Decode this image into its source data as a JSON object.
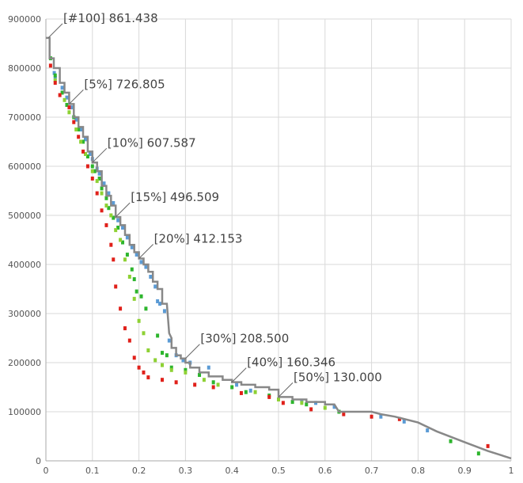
{
  "chart_data": {
    "type": "scatter",
    "title": "",
    "xlabel": "",
    "ylabel": "",
    "xlim": [
      0,
      1
    ],
    "ylim": [
      0,
      900000
    ],
    "grid": true,
    "x_ticks": [
      {
        "value": 0,
        "label": "0"
      },
      {
        "value": 0.1,
        "label": "0.1"
      },
      {
        "value": 0.2,
        "label": "0.2"
      },
      {
        "value": 0.3,
        "label": "0.3"
      },
      {
        "value": 0.4,
        "label": "0.4"
      },
      {
        "value": 0.5,
        "label": "0.5"
      },
      {
        "value": 0.6,
        "label": "0.6"
      },
      {
        "value": 0.7,
        "label": "0.7"
      },
      {
        "value": 0.8,
        "label": "0.8"
      },
      {
        "value": 0.9,
        "label": "0.9"
      },
      {
        "value": 1,
        "label": "1"
      }
    ],
    "y_ticks": [
      {
        "value": 0,
        "label": "0"
      },
      {
        "value": 100000,
        "label": "100000"
      },
      {
        "value": 200000,
        "label": "200000"
      },
      {
        "value": 300000,
        "label": "300000"
      },
      {
        "value": 400000,
        "label": "400000"
      },
      {
        "value": 500000,
        "label": "500000"
      },
      {
        "value": 600000,
        "label": "600000"
      },
      {
        "value": 700000,
        "label": "700000"
      },
      {
        "value": 800000,
        "label": "800000"
      },
      {
        "value": 900000,
        "label": "900000"
      }
    ],
    "annotations": [
      {
        "label": "[#100] 861.438",
        "x": 0.005,
        "y": 861438
      },
      {
        "label": "[5%] 726.805",
        "x": 0.05,
        "y": 726805
      },
      {
        "label": "[10%] 607.587",
        "x": 0.1,
        "y": 607587
      },
      {
        "label": "[15%] 496.509",
        "x": 0.15,
        "y": 496509
      },
      {
        "label": "[20%] 412.153",
        "x": 0.2,
        "y": 412153
      },
      {
        "label": "[30%] 208.500",
        "x": 0.3,
        "y": 208500
      },
      {
        "label": "[40%] 160.346",
        "x": 0.4,
        "y": 160346
      },
      {
        "label": "[50%] 130.000",
        "x": 0.5,
        "y": 130000
      }
    ],
    "series": [
      {
        "color": "#888888",
        "style": "step-line",
        "points": [
          [
            0.0,
            861438
          ],
          [
            0.008,
            861438
          ],
          [
            0.008,
            820000
          ],
          [
            0.017,
            820000
          ],
          [
            0.017,
            800000
          ],
          [
            0.03,
            800000
          ],
          [
            0.03,
            770000
          ],
          [
            0.04,
            770000
          ],
          [
            0.04,
            750000
          ],
          [
            0.05,
            750000
          ],
          [
            0.05,
            726805
          ],
          [
            0.06,
            726805
          ],
          [
            0.06,
            700000
          ],
          [
            0.07,
            700000
          ],
          [
            0.07,
            680000
          ],
          [
            0.08,
            680000
          ],
          [
            0.08,
            660000
          ],
          [
            0.09,
            660000
          ],
          [
            0.09,
            630000
          ],
          [
            0.1,
            630000
          ],
          [
            0.1,
            607587
          ],
          [
            0.11,
            607587
          ],
          [
            0.11,
            590000
          ],
          [
            0.12,
            590000
          ],
          [
            0.12,
            560000
          ],
          [
            0.13,
            560000
          ],
          [
            0.13,
            540000
          ],
          [
            0.14,
            540000
          ],
          [
            0.14,
            520000
          ],
          [
            0.15,
            520000
          ],
          [
            0.15,
            496509
          ],
          [
            0.16,
            496509
          ],
          [
            0.16,
            480000
          ],
          [
            0.17,
            480000
          ],
          [
            0.17,
            460000
          ],
          [
            0.18,
            460000
          ],
          [
            0.18,
            440000
          ],
          [
            0.19,
            440000
          ],
          [
            0.19,
            425000
          ],
          [
            0.2,
            425000
          ],
          [
            0.2,
            412153
          ],
          [
            0.21,
            412153
          ],
          [
            0.21,
            400000
          ],
          [
            0.22,
            400000
          ],
          [
            0.22,
            385000
          ],
          [
            0.23,
            385000
          ],
          [
            0.23,
            365000
          ],
          [
            0.24,
            365000
          ],
          [
            0.24,
            350000
          ],
          [
            0.25,
            350000
          ],
          [
            0.25,
            320000
          ],
          [
            0.26,
            320000
          ],
          [
            0.265,
            260000
          ],
          [
            0.27,
            250000
          ],
          [
            0.27,
            230000
          ],
          [
            0.28,
            230000
          ],
          [
            0.28,
            215000
          ],
          [
            0.29,
            215000
          ],
          [
            0.29,
            208500
          ],
          [
            0.3,
            208500
          ],
          [
            0.3,
            200000
          ],
          [
            0.31,
            200000
          ],
          [
            0.31,
            190000
          ],
          [
            0.33,
            190000
          ],
          [
            0.33,
            180000
          ],
          [
            0.35,
            180000
          ],
          [
            0.35,
            172000
          ],
          [
            0.38,
            172000
          ],
          [
            0.38,
            165000
          ],
          [
            0.4,
            165000
          ],
          [
            0.4,
            160346
          ],
          [
            0.42,
            160346
          ],
          [
            0.42,
            155000
          ],
          [
            0.45,
            155000
          ],
          [
            0.45,
            150000
          ],
          [
            0.48,
            150000
          ],
          [
            0.48,
            145000
          ],
          [
            0.5,
            145000
          ],
          [
            0.5,
            130000
          ],
          [
            0.53,
            130000
          ],
          [
            0.53,
            125000
          ],
          [
            0.56,
            125000
          ],
          [
            0.56,
            120000
          ],
          [
            0.6,
            120000
          ],
          [
            0.6,
            115000
          ],
          [
            0.62,
            115000
          ],
          [
            0.63,
            100000
          ],
          [
            0.7,
            100000
          ],
          [
            0.72,
            95000
          ],
          [
            0.75,
            90000
          ],
          [
            0.8,
            78000
          ],
          [
            0.84,
            60000
          ],
          [
            0.9,
            38000
          ],
          [
            0.95,
            20000
          ],
          [
            1.0,
            5000
          ]
        ]
      },
      {
        "color": "#5b9bd5",
        "style": "markers",
        "points": [
          [
            0.018,
            790000
          ],
          [
            0.02,
            780000
          ],
          [
            0.035,
            760000
          ],
          [
            0.045,
            740000
          ],
          [
            0.055,
            720000
          ],
          [
            0.065,
            695000
          ],
          [
            0.075,
            675000
          ],
          [
            0.085,
            655000
          ],
          [
            0.095,
            625000
          ],
          [
            0.1,
            615000
          ],
          [
            0.11,
            595000
          ],
          [
            0.115,
            585000
          ],
          [
            0.125,
            565000
          ],
          [
            0.135,
            545000
          ],
          [
            0.145,
            525000
          ],
          [
            0.155,
            490000
          ],
          [
            0.165,
            475000
          ],
          [
            0.175,
            455000
          ],
          [
            0.185,
            435000
          ],
          [
            0.195,
            420000
          ],
          [
            0.205,
            405000
          ],
          [
            0.215,
            395000
          ],
          [
            0.225,
            375000
          ],
          [
            0.235,
            355000
          ],
          [
            0.24,
            325000
          ],
          [
            0.245,
            320000
          ],
          [
            0.255,
            305000
          ],
          [
            0.265,
            245000
          ],
          [
            0.28,
            215000
          ],
          [
            0.295,
            205000
          ],
          [
            0.31,
            200000
          ],
          [
            0.35,
            190000
          ],
          [
            0.41,
            155000
          ],
          [
            0.44,
            143000
          ],
          [
            0.55,
            122000
          ],
          [
            0.58,
            118000
          ],
          [
            0.62,
            110000
          ],
          [
            0.72,
            90000
          ],
          [
            0.77,
            80000
          ],
          [
            0.82,
            62000
          ]
        ]
      },
      {
        "color": "#2db52d",
        "style": "markers",
        "points": [
          [
            0.01,
            820000
          ],
          [
            0.02,
            785000
          ],
          [
            0.035,
            750000
          ],
          [
            0.045,
            725000
          ],
          [
            0.06,
            700000
          ],
          [
            0.07,
            675000
          ],
          [
            0.08,
            650000
          ],
          [
            0.09,
            620000
          ],
          [
            0.1,
            600000
          ],
          [
            0.105,
            590000
          ],
          [
            0.115,
            575000
          ],
          [
            0.12,
            555000
          ],
          [
            0.13,
            535000
          ],
          [
            0.135,
            515000
          ],
          [
            0.145,
            495000
          ],
          [
            0.155,
            475000
          ],
          [
            0.165,
            445000
          ],
          [
            0.175,
            420000
          ],
          [
            0.185,
            390000
          ],
          [
            0.19,
            370000
          ],
          [
            0.195,
            345000
          ],
          [
            0.205,
            335000
          ],
          [
            0.215,
            310000
          ],
          [
            0.24,
            255000
          ],
          [
            0.25,
            220000
          ],
          [
            0.26,
            215000
          ],
          [
            0.27,
            190000
          ],
          [
            0.3,
            185000
          ],
          [
            0.33,
            175000
          ],
          [
            0.36,
            160000
          ],
          [
            0.4,
            150000
          ],
          [
            0.43,
            140000
          ],
          [
            0.48,
            133000
          ],
          [
            0.53,
            120000
          ],
          [
            0.56,
            115000
          ],
          [
            0.63,
            100000
          ],
          [
            0.87,
            40000
          ],
          [
            0.93,
            15000
          ]
        ]
      },
      {
        "color": "#8ed134",
        "style": "markers",
        "points": [
          [
            0.02,
            775000
          ],
          [
            0.04,
            735000
          ],
          [
            0.05,
            710000
          ],
          [
            0.065,
            675000
          ],
          [
            0.075,
            650000
          ],
          [
            0.085,
            625000
          ],
          [
            0.1,
            590000
          ],
          [
            0.11,
            570000
          ],
          [
            0.12,
            545000
          ],
          [
            0.13,
            520000
          ],
          [
            0.14,
            500000
          ],
          [
            0.15,
            470000
          ],
          [
            0.16,
            450000
          ],
          [
            0.17,
            410000
          ],
          [
            0.18,
            375000
          ],
          [
            0.19,
            330000
          ],
          [
            0.2,
            285000
          ],
          [
            0.21,
            260000
          ],
          [
            0.22,
            225000
          ],
          [
            0.235,
            205000
          ],
          [
            0.25,
            195000
          ],
          [
            0.27,
            185000
          ],
          [
            0.3,
            180000
          ],
          [
            0.34,
            165000
          ],
          [
            0.37,
            155000
          ],
          [
            0.45,
            140000
          ],
          [
            0.5,
            125000
          ],
          [
            0.55,
            118000
          ],
          [
            0.6,
            108000
          ]
        ]
      },
      {
        "color": "#e0201a",
        "style": "markers",
        "points": [
          [
            0.01,
            805000
          ],
          [
            0.02,
            770000
          ],
          [
            0.03,
            745000
          ],
          [
            0.05,
            720000
          ],
          [
            0.06,
            690000
          ],
          [
            0.07,
            660000
          ],
          [
            0.08,
            630000
          ],
          [
            0.09,
            600000
          ],
          [
            0.1,
            575000
          ],
          [
            0.11,
            545000
          ],
          [
            0.12,
            510000
          ],
          [
            0.13,
            480000
          ],
          [
            0.14,
            440000
          ],
          [
            0.145,
            410000
          ],
          [
            0.15,
            355000
          ],
          [
            0.16,
            310000
          ],
          [
            0.17,
            270000
          ],
          [
            0.18,
            245000
          ],
          [
            0.19,
            210000
          ],
          [
            0.2,
            190000
          ],
          [
            0.21,
            180000
          ],
          [
            0.22,
            170000
          ],
          [
            0.25,
            165000
          ],
          [
            0.28,
            160000
          ],
          [
            0.32,
            155000
          ],
          [
            0.36,
            150000
          ],
          [
            0.42,
            138000
          ],
          [
            0.48,
            130000
          ],
          [
            0.51,
            118000
          ],
          [
            0.57,
            105000
          ],
          [
            0.64,
            95000
          ],
          [
            0.7,
            90000
          ],
          [
            0.76,
            85000
          ],
          [
            0.95,
            30000
          ]
        ]
      }
    ]
  }
}
